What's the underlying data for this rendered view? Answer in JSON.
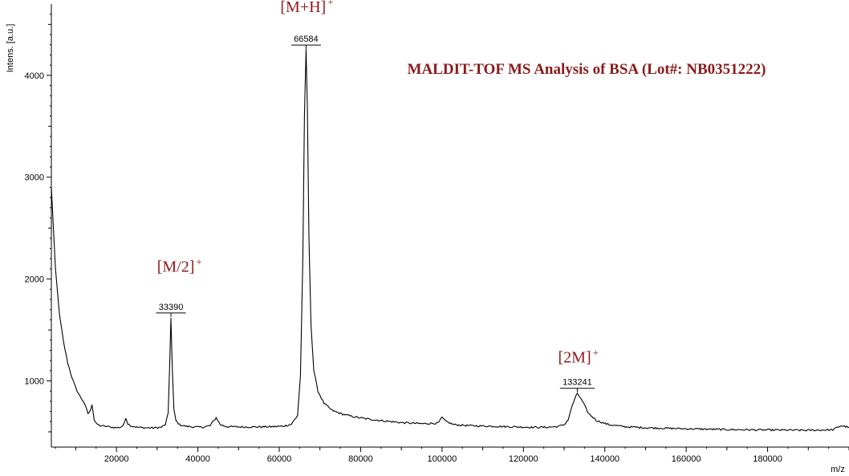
{
  "chart_data": {
    "type": "line",
    "title": "MALDIT-TOF MS Analysis of BSA (Lot#: NB0351222)",
    "xlabel": "m/z",
    "ylabel": "Intens. [a.u.]",
    "xlim": [
      4000,
      200000
    ],
    "ylim": [
      350,
      4700
    ],
    "xticks": [
      20000,
      40000,
      60000,
      80000,
      100000,
      120000,
      140000,
      160000,
      180000
    ],
    "yticks": [
      1000,
      2000,
      3000,
      4000
    ],
    "grid": false,
    "line_color": "#000000",
    "annotation_color": "#8b1a1a",
    "series": [
      {
        "x": [
          4000,
          4500,
          5000,
          6000,
          7000,
          8000,
          9000,
          10000,
          11000,
          12000,
          13000,
          13500,
          14000,
          14500,
          15000,
          16000,
          17000,
          18000,
          19000,
          20000,
          21000,
          21800,
          22300,
          22800,
          23500,
          25000,
          27000,
          29000,
          31000,
          32000,
          32700,
          33100,
          33390,
          33700,
          34100,
          34600,
          35500,
          37000,
          39000,
          41000,
          43000,
          44500,
          45500,
          47000,
          50000,
          54000,
          58000,
          61000,
          63000,
          64500,
          65200,
          65800,
          66200,
          66584,
          66900,
          67300,
          67800,
          68500,
          69500,
          71000,
          73000,
          75000,
          78000,
          81000,
          85000,
          90000,
          95000,
          99000,
          100000,
          101000,
          103000,
          107000,
          112000,
          117000,
          122000,
          126000,
          128500,
          130000,
          131000,
          132000,
          133241,
          134500,
          136000,
          138000,
          141000,
          145000,
          150000,
          160000,
          170000,
          180000,
          190000,
          196000,
          198000,
          200000
        ],
        "y": [
          2900,
          2500,
          2100,
          1650,
          1380,
          1180,
          1040,
          930,
          850,
          790,
          680,
          700,
          770,
          620,
          580,
          560,
          555,
          550,
          545,
          540,
          545,
          570,
          640,
          580,
          560,
          545,
          540,
          538,
          545,
          570,
          680,
          1200,
          1620,
          1150,
          720,
          610,
          570,
          555,
          548,
          545,
          560,
          640,
          570,
          552,
          548,
          548,
          550,
          555,
          575,
          660,
          1050,
          2200,
          3600,
          4250,
          3700,
          2400,
          1550,
          1100,
          900,
          780,
          710,
          680,
          650,
          630,
          610,
          590,
          580,
          585,
          640,
          600,
          570,
          560,
          555,
          550,
          545,
          545,
          552,
          570,
          620,
          760,
          880,
          800,
          680,
          610,
          570,
          550,
          540,
          530,
          522,
          518,
          515,
          520,
          560,
          545
        ]
      }
    ],
    "peak_labels": [
      {
        "text": "33390",
        "x": 33390,
        "y": 1620
      },
      {
        "text": "66584",
        "x": 66584,
        "y": 4250
      },
      {
        "text": "133241",
        "x": 133241,
        "y": 880
      }
    ],
    "annotations": [
      {
        "label": "[M/2]",
        "sup": "+",
        "x": 35500,
        "y": 2070
      },
      {
        "label": "[M+H]",
        "sup": "+",
        "x": 66800,
        "y": 4620
      },
      {
        "label": "[2M]",
        "sup": "+",
        "x": 133500,
        "y": 1180
      }
    ]
  }
}
